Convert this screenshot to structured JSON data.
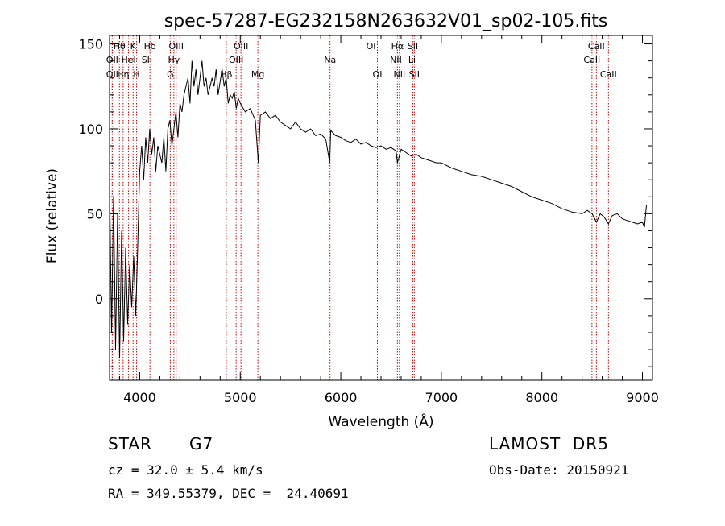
{
  "chart_data": {
    "type": "line",
    "title": "spec-57287-EG232158N263632V01_sp02-105.fits",
    "xlabel": "Wavelength (Å)",
    "ylabel": "Flux (relative)",
    "xlim": [
      3700,
      9100
    ],
    "ylim": [
      -48,
      155
    ],
    "x_ticks": [
      4000,
      5000,
      6000,
      7000,
      8000,
      9000
    ],
    "y_ticks": [
      0,
      50,
      100,
      150
    ],
    "grid": false,
    "line_color": "#000000",
    "marker_color": "#cc0000",
    "series": [
      {
        "x": [
          3700,
          3720,
          3740,
          3760,
          3780,
          3800,
          3820,
          3840,
          3860,
          3880,
          3900,
          3920,
          3940,
          3960,
          3980,
          4000,
          4020,
          4040,
          4060,
          4080,
          4100,
          4120,
          4140,
          4160,
          4180,
          4200,
          4220,
          4240,
          4260,
          4280,
          4300,
          4320,
          4340,
          4360,
          4380,
          4400,
          4420,
          4440,
          4460,
          4480,
          4500,
          4520,
          4540,
          4560,
          4580,
          4600,
          4620,
          4640,
          4660,
          4680,
          4700,
          4720,
          4740,
          4760,
          4780,
          4800,
          4820,
          4840,
          4860,
          4880,
          4900,
          4920,
          4940,
          4960,
          4980,
          5000,
          5050,
          5100,
          5150,
          5180,
          5200,
          5250,
          5300,
          5350,
          5400,
          5450,
          5500,
          5550,
          5600,
          5650,
          5700,
          5750,
          5800,
          5850,
          5890,
          5900,
          5950,
          6000,
          6050,
          6100,
          6150,
          6200,
          6250,
          6300,
          6350,
          6400,
          6450,
          6500,
          6550,
          6563,
          6600,
          6650,
          6700,
          6750,
          6800,
          6850,
          6900,
          6950,
          7000,
          7100,
          7200,
          7300,
          7400,
          7500,
          7600,
          7700,
          7800,
          7900,
          8000,
          8100,
          8200,
          8300,
          8400,
          8450,
          8500,
          8542,
          8580,
          8620,
          8662,
          8700,
          8750,
          8800,
          8850,
          8900,
          8950,
          9000,
          9020,
          9040
        ],
        "y": [
          70,
          -20,
          60,
          -30,
          50,
          -35,
          40,
          -25,
          30,
          -15,
          20,
          -5,
          25,
          -10,
          30,
          75,
          90,
          70,
          95,
          80,
          100,
          85,
          95,
          75,
          90,
          85,
          80,
          95,
          75,
          100,
          105,
          90,
          100,
          110,
          95,
          115,
          110,
          120,
          125,
          130,
          115,
          140,
          125,
          135,
          120,
          130,
          140,
          125,
          130,
          120,
          125,
          130,
          125,
          135,
          120,
          128,
          135,
          125,
          130,
          115,
          120,
          118,
          122,
          112,
          118,
          115,
          110,
          112,
          105,
          80,
          108,
          110,
          106,
          108,
          104,
          102,
          100,
          104,
          100,
          98,
          100,
          96,
          97,
          94,
          80,
          99,
          96,
          95,
          93,
          92,
          94,
          91,
          92,
          90,
          89,
          90,
          88,
          89,
          87,
          80,
          88,
          86,
          84,
          85,
          83,
          82,
          81,
          80,
          80,
          77,
          75,
          73,
          72,
          70,
          68,
          66,
          63,
          60,
          58,
          56,
          53,
          51,
          50,
          52,
          50,
          45,
          50,
          48,
          44,
          49,
          50,
          47,
          46,
          45,
          44,
          45,
          42,
          55
        ]
      }
    ],
    "line_markers": [
      {
        "label": "Hθ",
        "x": 3798,
        "row": 1
      },
      {
        "label": "OII",
        "x": 3727,
        "row": 2
      },
      {
        "label": "OII",
        "x": 3727,
        "row": 3
      },
      {
        "label": "HeI",
        "x": 3889,
        "row": 2
      },
      {
        "label": "Hη",
        "x": 3835,
        "row": 3
      },
      {
        "label": "K",
        "x": 3934,
        "row": 1
      },
      {
        "label": "H",
        "x": 3969,
        "row": 3
      },
      {
        "label": "Hδ",
        "x": 4102,
        "row": 1
      },
      {
        "label": "SII",
        "x": 4072,
        "row": 2
      },
      {
        "label": "OIII",
        "x": 4363,
        "row": 1
      },
      {
        "label": "Hγ",
        "x": 4340,
        "row": 2
      },
      {
        "label": "G",
        "x": 4304,
        "row": 3
      },
      {
        "label": "Hβ",
        "x": 4861,
        "row": 3
      },
      {
        "label": "OIII",
        "x": 5007,
        "row": 1
      },
      {
        "label": "OIII",
        "x": 4959,
        "row": 2
      },
      {
        "label": "Mg",
        "x": 5175,
        "row": 3
      },
      {
        "label": "Na",
        "x": 5893,
        "row": 2
      },
      {
        "label": "OI",
        "x": 6300,
        "row": 1
      },
      {
        "label": "OI",
        "x": 6364,
        "row": 3
      },
      {
        "label": "Hα",
        "x": 6563,
        "row": 1
      },
      {
        "label": "NII",
        "x": 6548,
        "row": 2
      },
      {
        "label": "NII",
        "x": 6583,
        "row": 3
      },
      {
        "label": "SII",
        "x": 6716,
        "row": 1
      },
      {
        "label": "Li",
        "x": 6708,
        "row": 2
      },
      {
        "label": "SII",
        "x": 6731,
        "row": 3
      },
      {
        "label": "CaII",
        "x": 8542,
        "row": 1
      },
      {
        "label": "CaII",
        "x": 8498,
        "row": 2
      },
      {
        "label": "CaII",
        "x": 8662,
        "row": 3
      }
    ]
  },
  "info": {
    "object_class": "STAR",
    "subclass": "G7",
    "survey": "LAMOST  DR5",
    "redshift_line": "cz = 32.0 ± 5.4 km/s",
    "obs_date_line": "Obs-Date: 20150921",
    "coords_line": "RA = 349.55379, DEC =  24.40691"
  }
}
